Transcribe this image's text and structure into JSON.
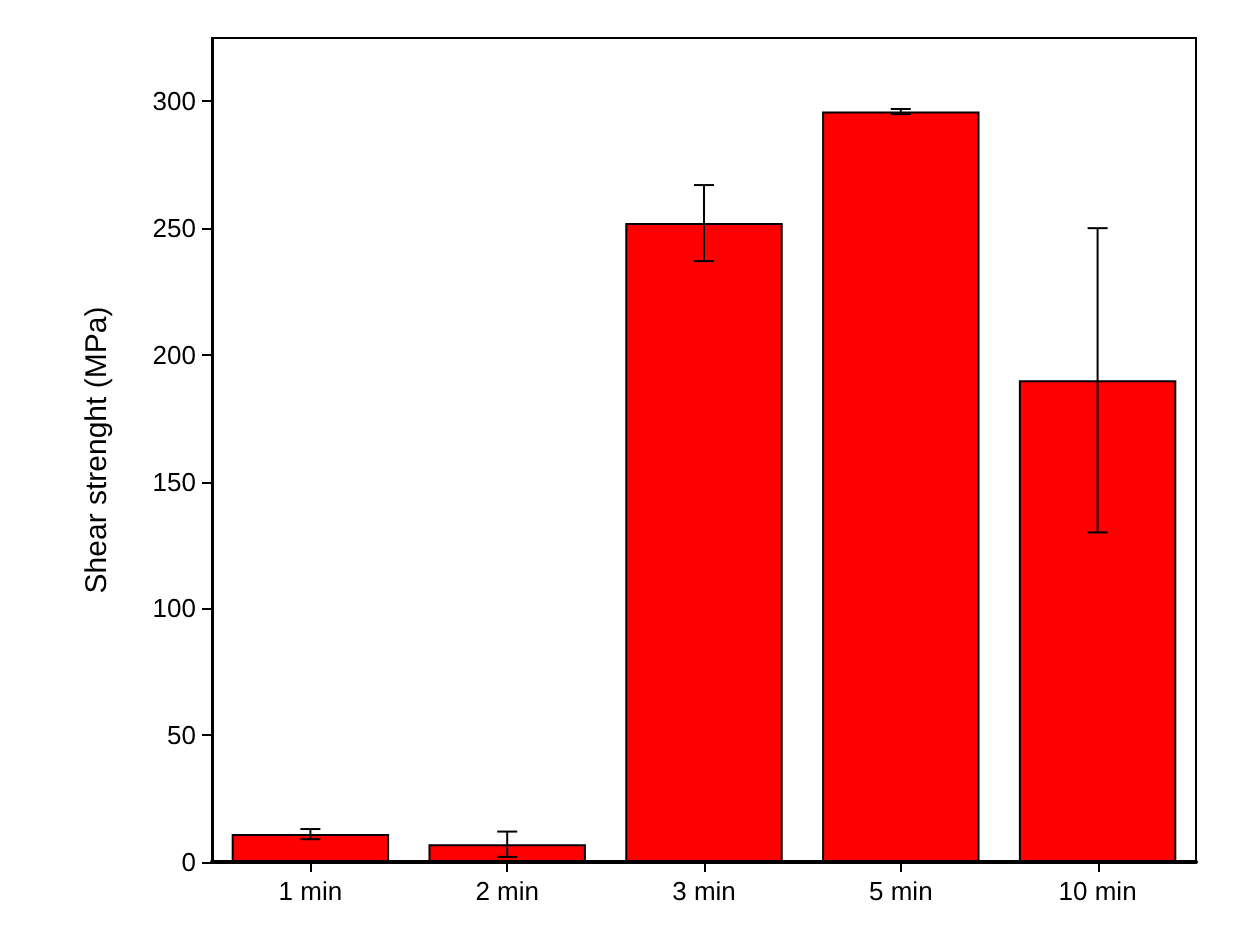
{
  "chart_data": {
    "type": "bar",
    "ylabel": "Shear strenght (MPa)",
    "categories": [
      "1 min",
      "2 min",
      "3 min",
      "5 min",
      "10 min"
    ],
    "values": [
      11,
      7,
      252,
      296,
      190
    ],
    "errors": [
      2,
      5,
      15,
      1,
      60
    ],
    "color": "#ff0000",
    "ylim": [
      0,
      325
    ],
    "yticks": [
      0,
      50,
      100,
      150,
      200,
      250,
      300
    ],
    "grid": false
  }
}
